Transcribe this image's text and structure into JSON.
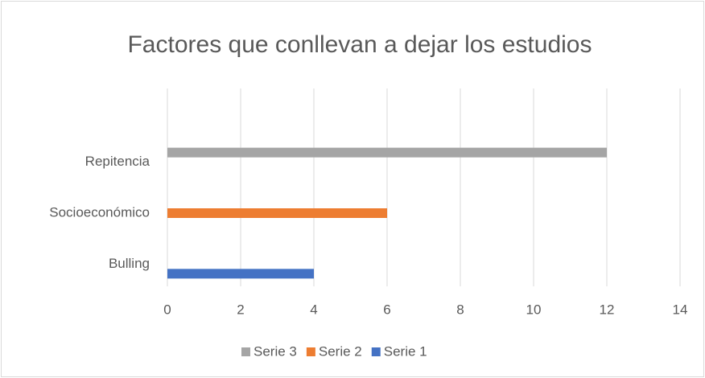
{
  "chart_data": {
    "type": "bar",
    "orientation": "horizontal",
    "title": "Factores que conllevan a dejar los estudios",
    "categories": [
      "Bulling",
      "Socioeconómico",
      "Repitencia"
    ],
    "series": [
      {
        "name": "Serie 1",
        "color": "#4472c4",
        "values": [
          4,
          null,
          null
        ]
      },
      {
        "name": "Serie 2",
        "color": "#ed7d31",
        "values": [
          null,
          6,
          null
        ]
      },
      {
        "name": "Serie 3",
        "color": "#a5a5a5",
        "values": [
          null,
          null,
          12
        ]
      }
    ],
    "xlim": [
      0,
      14
    ],
    "xticks": [
      0,
      2,
      4,
      6,
      8,
      10,
      12,
      14
    ],
    "grid": true,
    "legend": "bottom"
  }
}
